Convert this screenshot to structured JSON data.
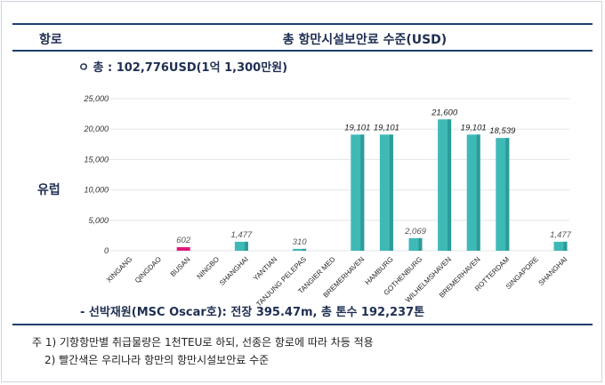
{
  "header": {
    "col_port": "항로",
    "col_level": "총 항만시설보안료 수준(USD)"
  },
  "total_line": "ㅇ 총 : 102,776USD(1억 1,300만원)",
  "region": "유럽",
  "vessel_line": "- 선박재원(MSC Oscar호): 전장 395.47m, 총 톤수 192,237톤",
  "notes": {
    "note1": "주 1) 기항항만별 취급물량은 1천TEU로 하되, 선종은 항로에 따라 차등 적용",
    "note2": "2) 빨간색은 우리나라 항만의 항만시설보안료 수준"
  },
  "colors": {
    "bar": "#3fb9b5",
    "bar_highlight": "#e0197d",
    "rule": "#1e3f6e"
  },
  "chart_data": {
    "type": "bar",
    "categories": [
      "XINGANG",
      "QINGDAO",
      "BUSAN",
      "NINGBO",
      "SHANGHAI",
      "YANTIAN",
      "TANJUNG PELEPAS",
      "TANGIER MED",
      "BREMERHAVEN",
      "HAMBURG",
      "GOTHENBURG",
      "WILHELMSHAVEN",
      "BREMERHAVEN",
      "ROTTERDAM",
      "SINGAPORE",
      "SHANGHAI"
    ],
    "values": [
      0,
      0,
      602,
      0,
      1477,
      0,
      310,
      0,
      19101,
      19101,
      2069,
      21600,
      19101,
      18539,
      0,
      1477
    ],
    "value_labels": [
      "",
      "",
      "602",
      "",
      "1,477",
      "",
      "310",
      "",
      "19,101",
      "19,101",
      "2,069",
      "21,600",
      "19,101",
      "18,539",
      "",
      "1,477"
    ],
    "highlight_index": 2,
    "yticks": [
      "0",
      "5,000",
      "10,000",
      "15,000",
      "20,000",
      "25,000"
    ],
    "ylim": [
      0,
      25000
    ],
    "grid": true
  }
}
